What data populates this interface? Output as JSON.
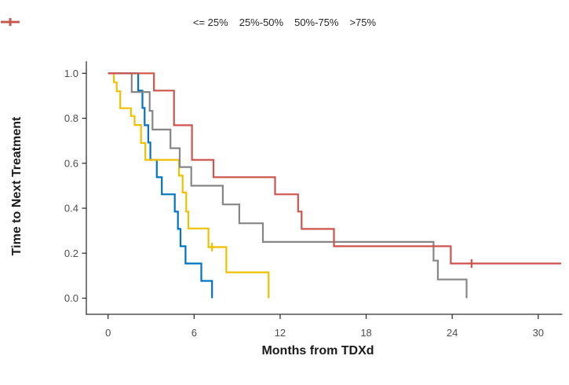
{
  "legend": {
    "items": [
      {
        "label": "<= 25%",
        "color": "#0073C2"
      },
      {
        "label": "25%-50%",
        "color": "#EFC000"
      },
      {
        "label": "50%-75%",
        "color": "#868686"
      },
      {
        "label": ">75%",
        "color": "#CD534C"
      }
    ]
  },
  "chart_data": {
    "type": "line",
    "subtype": "kaplan-meier-step",
    "title": "",
    "xlabel": "Months from TDXd",
    "ylabel": "Time to Next Treatment",
    "xlim": [
      0,
      31.6
    ],
    "ylim": [
      0,
      1.0
    ],
    "xticks": [
      0,
      6,
      12,
      18,
      24,
      30
    ],
    "yticks": [
      1.0,
      0.8,
      0.6,
      0.4,
      0.2,
      0.0
    ],
    "grid": false,
    "legend_position": "top-center",
    "axis_color": "#333333",
    "tick_label_color": "#4d4d4d",
    "series": [
      {
        "name": "<= 25%",
        "color": "#0073C2",
        "points": [
          [
            0,
            1.0
          ],
          [
            2.1,
            0.923
          ],
          [
            2.4,
            0.846
          ],
          [
            2.55,
            0.769
          ],
          [
            2.8,
            0.692
          ],
          [
            2.95,
            0.615
          ],
          [
            3.4,
            0.538
          ],
          [
            3.75,
            0.462
          ],
          [
            4.65,
            0.385
          ],
          [
            4.87,
            0.308
          ],
          [
            5.05,
            0.231
          ],
          [
            5.4,
            0.154
          ],
          [
            6.5,
            0.077
          ],
          [
            7.25,
            0.0
          ]
        ],
        "censors": [],
        "end": null
      },
      {
        "name": "25%-50%",
        "color": "#EFC000",
        "points": [
          [
            0,
            1.0
          ],
          [
            0.4,
            0.96
          ],
          [
            0.6,
            0.92
          ],
          [
            0.85,
            0.845
          ],
          [
            1.6,
            0.81
          ],
          [
            1.85,
            0.77
          ],
          [
            2.3,
            0.69
          ],
          [
            2.6,
            0.615
          ],
          [
            4.95,
            0.545
          ],
          [
            5.2,
            0.47
          ],
          [
            5.45,
            0.385
          ],
          [
            5.6,
            0.31
          ],
          [
            7.0,
            0.227
          ],
          [
            8.25,
            0.115
          ],
          [
            11.2,
            0.0
          ]
        ],
        "censors": [
          [
            7.25,
            0.227
          ]
        ],
        "end": null
      },
      {
        "name": "50%-75%",
        "color": "#868686",
        "points": [
          [
            0,
            1.0
          ],
          [
            1.65,
            0.917
          ],
          [
            2.9,
            0.833
          ],
          [
            3.1,
            0.75
          ],
          [
            4.35,
            0.667
          ],
          [
            5.0,
            0.583
          ],
          [
            5.8,
            0.5
          ],
          [
            8.0,
            0.417
          ],
          [
            9.15,
            0.333
          ],
          [
            10.8,
            0.25
          ],
          [
            22.7,
            0.167
          ],
          [
            23.0,
            0.083
          ],
          [
            25.0,
            0.0
          ]
        ],
        "censors": [],
        "end": null
      },
      {
        "name": ">75%",
        "color": "#CD534C",
        "points": [
          [
            0,
            1.0
          ],
          [
            3.2,
            0.923
          ],
          [
            4.6,
            0.769
          ],
          [
            5.85,
            0.615
          ],
          [
            7.35,
            0.538
          ],
          [
            11.65,
            0.462
          ],
          [
            13.25,
            0.385
          ],
          [
            13.5,
            0.308
          ],
          [
            15.75,
            0.231
          ],
          [
            23.9,
            0.154
          ]
        ],
        "censors": [
          [
            25.35,
            0.154
          ]
        ],
        "end": 31.6
      }
    ]
  }
}
